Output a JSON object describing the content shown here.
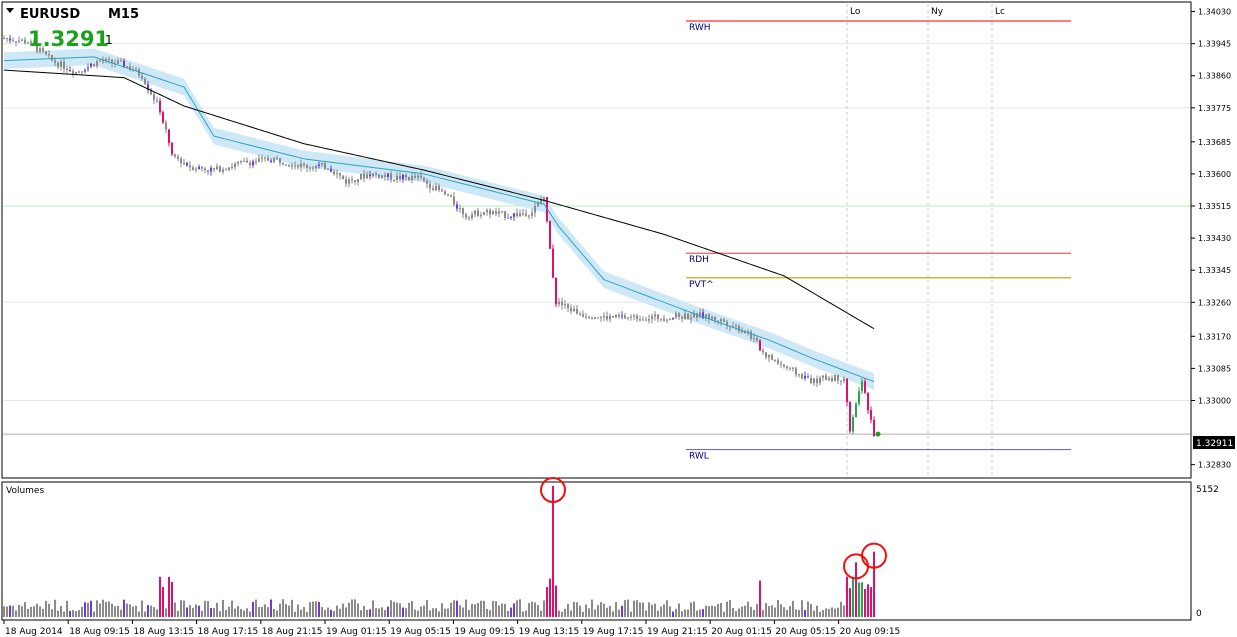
{
  "header": {
    "symbol": "EURUSD",
    "timeframe": "M15",
    "big_price": "1.3291",
    "big_price_suffix": "1",
    "colors": {
      "big_price": "#1aa31a"
    }
  },
  "indicator_panel": {
    "title": "Volumes",
    "axis_top": "5152",
    "axis_bottom": "0"
  },
  "session_labels": [
    "Lo",
    "Ny",
    "Lc"
  ],
  "levels": [
    {
      "name": "RWH",
      "value": 1.34005,
      "color": "#ff2a2a"
    },
    {
      "name": "RDH",
      "value": 1.3339,
      "color": "#e06060"
    },
    {
      "name": "PVT^",
      "value": 1.33325,
      "color": "#b5b514"
    },
    {
      "name": "RWL",
      "value": 1.3287,
      "color": "#6a6aff"
    }
  ],
  "current_price_label": "1.32911",
  "chart_data": [
    {
      "type": "candlestick",
      "symbol": "EURUSD",
      "timeframe": "M15",
      "y_ticks": [
        "1.34030",
        "1.33945",
        "1.33860",
        "1.33775",
        "1.33685",
        "1.33600",
        "1.33515",
        "1.33430",
        "1.33345",
        "1.33260",
        "1.33170",
        "1.33085",
        "1.33000",
        "1.32830"
      ],
      "ylim": [
        1.328,
        1.3405
      ],
      "x_ticks": [
        "18 Aug 2014",
        "18 Aug 09:15",
        "18 Aug 13:15",
        "18 Aug 17:15",
        "18 Aug 21:15",
        "19 Aug 01:15",
        "19 Aug 05:15",
        "19 Aug 09:15",
        "19 Aug 13:15",
        "19 Aug 17:15",
        "19 Aug 21:15",
        "20 Aug 01:15",
        "20 Aug 05:15",
        "20 Aug 09:15"
      ],
      "close_path": [
        [
          0,
          1.3396
        ],
        [
          8,
          1.3395
        ],
        [
          16,
          1.339
        ],
        [
          24,
          1.3387
        ],
        [
          32,
          1.339
        ],
        [
          40,
          1.3389
        ],
        [
          46,
          1.3386
        ],
        [
          52,
          1.3377
        ],
        [
          56,
          1.3365
        ],
        [
          62,
          1.3362
        ],
        [
          70,
          1.3361
        ],
        [
          80,
          1.3363
        ],
        [
          90,
          1.3364
        ],
        [
          100,
          1.3362
        ],
        [
          108,
          1.3362
        ],
        [
          114,
          1.3358
        ],
        [
          122,
          1.336
        ],
        [
          130,
          1.3359
        ],
        [
          138,
          1.3359
        ],
        [
          144,
          1.3356
        ],
        [
          148,
          1.3354
        ],
        [
          154,
          1.3349
        ],
        [
          160,
          1.335
        ],
        [
          168,
          1.3349
        ],
        [
          176,
          1.335
        ],
        [
          180,
          1.3354
        ],
        [
          184,
          1.3326
        ],
        [
          192,
          1.3323
        ],
        [
          200,
          1.3322
        ],
        [
          210,
          1.3322
        ],
        [
          220,
          1.3322
        ],
        [
          232,
          1.33225
        ],
        [
          240,
          1.3321
        ],
        [
          248,
          1.3318
        ],
        [
          254,
          1.3312
        ],
        [
          262,
          1.3308
        ],
        [
          270,
          1.3305
        ],
        [
          274,
          1.3306
        ],
        [
          280,
          1.3306
        ],
        [
          282,
          1.3292
        ],
        [
          286,
          1.3305
        ],
        [
          290,
          1.32911
        ]
      ],
      "current_price": 1.32911,
      "ma_slow": [
        [
          0,
          1.33875
        ],
        [
          40,
          1.33855
        ],
        [
          60,
          1.3378
        ],
        [
          100,
          1.3368
        ],
        [
          140,
          1.3361
        ],
        [
          180,
          1.3353
        ],
        [
          220,
          1.3344
        ],
        [
          260,
          1.3333
        ],
        [
          290,
          1.3319
        ]
      ],
      "ma_fast": [
        [
          0,
          1.339
        ],
        [
          30,
          1.3391
        ],
        [
          60,
          1.3383
        ],
        [
          70,
          1.337
        ],
        [
          100,
          1.3364
        ],
        [
          140,
          1.336
        ],
        [
          180,
          1.3352
        ],
        [
          185,
          1.3346
        ],
        [
          200,
          1.3332
        ],
        [
          230,
          1.3323
        ],
        [
          255,
          1.3316
        ],
        [
          270,
          1.3311
        ],
        [
          290,
          1.3305
        ]
      ],
      "bars": 291
    },
    {
      "type": "bar",
      "title": "Volumes",
      "ylim": [
        0,
        5152
      ],
      "spikes": [
        {
          "bar": 183,
          "value": 5152
        },
        {
          "bar": 284,
          "value": 2150
        },
        {
          "bar": 290,
          "value": 2570
        }
      ]
    }
  ]
}
